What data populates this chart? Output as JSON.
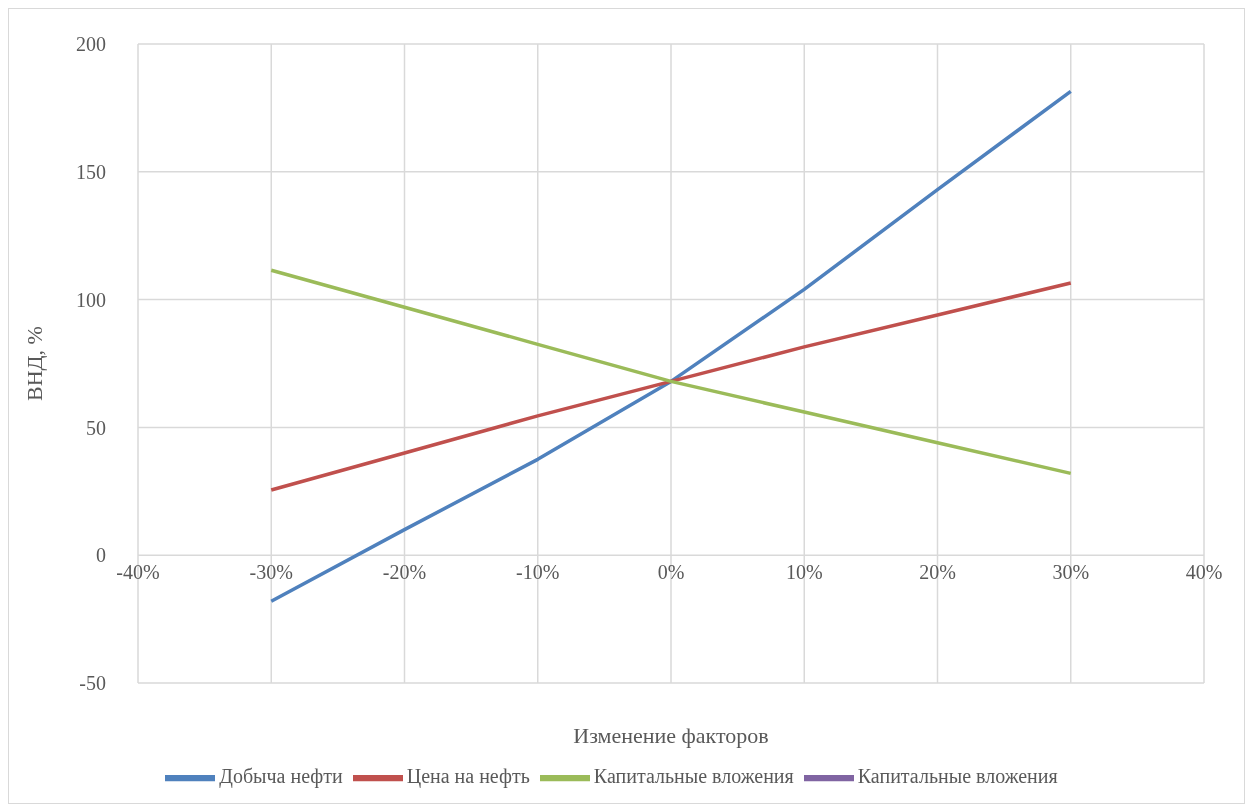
{
  "chart_data": {
    "type": "line",
    "xlabel": "Изменение факторов",
    "ylabel": "ВНД, %",
    "x": [
      -30,
      -20,
      -10,
      0,
      10,
      20,
      30
    ],
    "series": [
      {
        "name": "Добыча нефти",
        "color": "#4f81bd",
        "values": [
          -18,
          10,
          37.5,
          68,
          104,
          143,
          181.5
        ]
      },
      {
        "name": "Цена на нефть",
        "color": "#c0504d",
        "values": [
          25.5,
          40,
          54.5,
          68,
          81.5,
          94,
          106.5
        ]
      },
      {
        "name": "Капитальные вложения",
        "color": "#9bbb59",
        "values": [
          111.5,
          97,
          82.5,
          68,
          56,
          44,
          32
        ]
      },
      {
        "name": "Капитальные вложения",
        "color": "#8064a2",
        "values": [
          null,
          null,
          null,
          null,
          null,
          null,
          null
        ]
      }
    ],
    "xlim": [
      -40,
      40
    ],
    "xticks": [
      {
        "value": -40,
        "label": "-40%"
      },
      {
        "value": -30,
        "label": "-30%"
      },
      {
        "value": -20,
        "label": "-20%"
      },
      {
        "value": -10,
        "label": "-10%"
      },
      {
        "value": 0,
        "label": "0%"
      },
      {
        "value": 10,
        "label": "10%"
      },
      {
        "value": 20,
        "label": "20%"
      },
      {
        "value": 30,
        "label": "30%"
      },
      {
        "value": 40,
        "label": "40%"
      }
    ],
    "ylim": [
      -50,
      200
    ],
    "yticks": [
      -50,
      0,
      50,
      100,
      150,
      200
    ],
    "grid": true,
    "legend": "bottom",
    "marker": "none",
    "line_style": "solid"
  }
}
